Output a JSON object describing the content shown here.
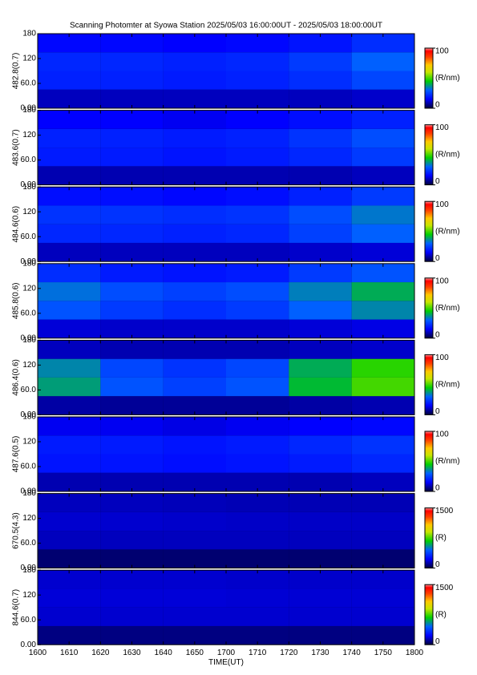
{
  "chart_data": [
    {
      "type": "heatmap",
      "title": "Scanning Photomter at Syowa Station 2025/05/03 16:00:00UT - 2025/05/03 18:00:00UT",
      "ylabel": "482.8(0.7)",
      "xlim": [
        0,
        120
      ],
      "xbins": [
        0,
        20,
        40,
        60,
        80,
        100,
        120
      ],
      "ybins": [
        0,
        45,
        90,
        135,
        180
      ],
      "ylim": [
        0,
        180
      ],
      "yticks": [
        {
          "value": 0,
          "label": "0.00"
        },
        {
          "value": 60,
          "label": "60.0"
        },
        120,
        180
      ],
      "colorbar": {
        "lim": [
          0,
          100
        ],
        "ticks": [
          0,
          100
        ],
        "label": "(R/nm)"
      },
      "values": [
        [
          10,
          10,
          10,
          10,
          10,
          11
        ],
        [
          20,
          20,
          19,
          20,
          22,
          26
        ],
        [
          21,
          21,
          20,
          21,
          24,
          30
        ],
        [
          16,
          16,
          15,
          16,
          18,
          22
        ]
      ]
    },
    {
      "type": "heatmap",
      "ylabel": "483.6(0.7)",
      "xlim": [
        0,
        120
      ],
      "xbins": [
        0,
        20,
        40,
        60,
        80,
        100,
        120
      ],
      "ybins": [
        0,
        45,
        90,
        135,
        180
      ],
      "ylim": [
        0,
        180
      ],
      "yticks": [
        {
          "value": 0,
          "label": "0.00"
        },
        {
          "value": 60,
          "label": "60.0"
        },
        120,
        180
      ],
      "colorbar": {
        "lim": [
          0,
          100
        ],
        "ticks": [
          0,
          100
        ],
        "label": "(R/nm)"
      },
      "values": [
        [
          9,
          9,
          9,
          9,
          9,
          10
        ],
        [
          19,
          19,
          18,
          19,
          21,
          24
        ],
        [
          20,
          20,
          19,
          20,
          23,
          27
        ],
        [
          15,
          15,
          14,
          15,
          17,
          20
        ]
      ]
    },
    {
      "type": "heatmap",
      "ylabel": "484.6(0.6)",
      "xlim": [
        0,
        120
      ],
      "xbins": [
        0,
        20,
        40,
        60,
        80,
        100,
        120
      ],
      "ybins": [
        0,
        45,
        90,
        135,
        180
      ],
      "ylim": [
        0,
        180
      ],
      "yticks": [
        {
          "value": 0,
          "label": "0.00"
        },
        {
          "value": 60,
          "label": "60.0"
        },
        120,
        180
      ],
      "colorbar": {
        "lim": [
          0,
          100
        ],
        "ticks": [
          0,
          100
        ],
        "label": "(R/nm)"
      },
      "values": [
        [
          10,
          10,
          10,
          10,
          11,
          12
        ],
        [
          21,
          21,
          20,
          21,
          25,
          30
        ],
        [
          23,
          23,
          22,
          23,
          27,
          33
        ],
        [
          17,
          17,
          16,
          17,
          20,
          24
        ]
      ]
    },
    {
      "type": "heatmap",
      "ylabel": "485.8(0.6)",
      "xlim": [
        0,
        120
      ],
      "xbins": [
        0,
        20,
        40,
        60,
        80,
        100,
        120
      ],
      "ybins": [
        0,
        45,
        90,
        135,
        180
      ],
      "ylim": [
        0,
        180
      ],
      "yticks": [
        {
          "value": 0,
          "label": "0.00"
        },
        {
          "value": 60,
          "label": "60.0"
        },
        120,
        180
      ],
      "colorbar": {
        "lim": [
          0,
          100
        ],
        "ticks": [
          0,
          100
        ],
        "label": "(R/nm)"
      },
      "values": [
        [
          12,
          11,
          11,
          11,
          12,
          13
        ],
        [
          28,
          24,
          22,
          24,
          30,
          35
        ],
        [
          32,
          27,
          25,
          27,
          34,
          40
        ],
        [
          22,
          19,
          18,
          19,
          24,
          28
        ]
      ]
    },
    {
      "type": "heatmap",
      "ylabel": "486.4(0.6)",
      "xlim": [
        0,
        120
      ],
      "xbins": [
        0,
        20,
        40,
        60,
        80,
        100,
        120
      ],
      "ybins": [
        0,
        45,
        90,
        135,
        180
      ],
      "ylim": [
        0,
        180
      ],
      "yticks": [
        {
          "value": 0,
          "label": "0.00"
        },
        {
          "value": 60,
          "label": "60.0"
        },
        120,
        180
      ],
      "colorbar": {
        "lim": [
          0,
          100
        ],
        "ticks": [
          0,
          100
        ],
        "label": "(R/nm)"
      },
      "values": [
        [
          8,
          7,
          7,
          7,
          8,
          9
        ],
        [
          38,
          28,
          25,
          28,
          42,
          50
        ],
        [
          35,
          26,
          23,
          26,
          40,
          48
        ],
        [
          10,
          9,
          9,
          9,
          10,
          11
        ]
      ]
    },
    {
      "type": "heatmap",
      "ylabel": "487.6(0.5)",
      "xlim": [
        0,
        120
      ],
      "xbins": [
        0,
        20,
        40,
        60,
        80,
        100,
        120
      ],
      "ybins": [
        0,
        45,
        90,
        135,
        180
      ],
      "ylim": [
        0,
        180
      ],
      "yticks": [
        {
          "value": 0,
          "label": "0.00"
        },
        {
          "value": 60,
          "label": "60.0"
        },
        120,
        180
      ],
      "colorbar": {
        "lim": [
          0,
          100
        ],
        "ticks": [
          0,
          100
        ],
        "label": "(R/nm)"
      },
      "values": [
        [
          9,
          9,
          9,
          9,
          9,
          10
        ],
        [
          18,
          18,
          17,
          18,
          19,
          21
        ],
        [
          19,
          19,
          18,
          19,
          21,
          23
        ],
        [
          14,
          14,
          13,
          14,
          15,
          16
        ]
      ]
    },
    {
      "type": "heatmap",
      "ylabel": "670.5(4.3)",
      "xlim": [
        0,
        120
      ],
      "xbins": [
        0,
        20,
        40,
        60,
        80,
        100,
        120
      ],
      "ybins": [
        0,
        45,
        90,
        135,
        180
      ],
      "ylim": [
        0,
        180
      ],
      "yticks": [
        {
          "value": 0,
          "label": "0.00"
        },
        {
          "value": 60,
          "label": "60.0"
        },
        120,
        180
      ],
      "colorbar": {
        "lim": [
          0,
          1500
        ],
        "ticks": [
          0,
          1500
        ],
        "label": "(R)"
      },
      "values": [
        [
          60,
          60,
          60,
          60,
          60,
          60
        ],
        [
          150,
          150,
          150,
          150,
          150,
          150
        ],
        [
          170,
          170,
          165,
          160,
          160,
          160
        ],
        [
          150,
          150,
          145,
          140,
          140,
          140
        ]
      ]
    },
    {
      "type": "heatmap",
      "ylabel": "844.6(0.7)",
      "xlabel": "TIME(UT)",
      "xlim": [
        0,
        120
      ],
      "xbins": [
        0,
        20,
        40,
        60,
        80,
        100,
        120
      ],
      "ybins": [
        0,
        45,
        90,
        135,
        180
      ],
      "xticks": [
        {
          "value": 0,
          "label": "1600"
        },
        {
          "value": 10,
          "label": "1610"
        },
        {
          "value": 20,
          "label": "1620"
        },
        {
          "value": 30,
          "label": "1630"
        },
        {
          "value": 40,
          "label": "1640"
        },
        {
          "value": 50,
          "label": "1650"
        },
        {
          "value": 60,
          "label": "1700"
        },
        {
          "value": 70,
          "label": "1710"
        },
        {
          "value": 80,
          "label": "1720"
        },
        {
          "value": 90,
          "label": "1730"
        },
        {
          "value": 100,
          "label": "1740"
        },
        {
          "value": 110,
          "label": "1750"
        },
        {
          "value": 120,
          "label": "1800"
        }
      ],
      "ylim": [
        0,
        180
      ],
      "yticks": [
        {
          "value": 0,
          "label": "0.00"
        },
        {
          "value": 60,
          "label": "60.0"
        },
        120,
        180
      ],
      "colorbar": {
        "lim": [
          0,
          1500
        ],
        "ticks": [
          0,
          1500
        ],
        "label": "(R)"
      },
      "values": [
        [
          80,
          80,
          80,
          80,
          80,
          80
        ],
        [
          170,
          170,
          170,
          170,
          170,
          170
        ],
        [
          180,
          180,
          180,
          175,
          175,
          175
        ],
        [
          170,
          170,
          170,
          165,
          165,
          165
        ]
      ]
    }
  ]
}
